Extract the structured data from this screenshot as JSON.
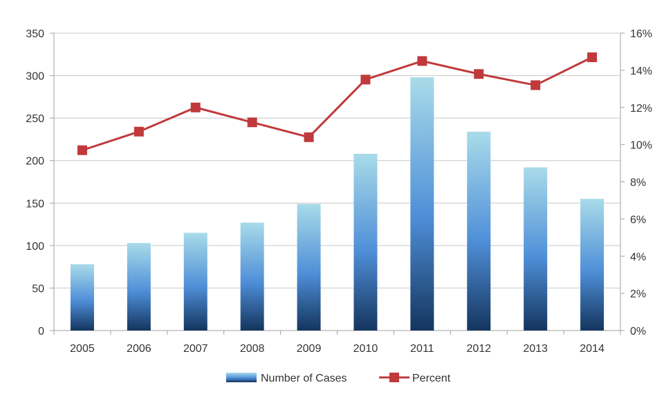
{
  "chart_data": {
    "type": "bar",
    "categories": [
      "2005",
      "2006",
      "2007",
      "2008",
      "2009",
      "2010",
      "2011",
      "2012",
      "2013",
      "2014"
    ],
    "series": [
      {
        "name": "Number of Cases",
        "type": "bar",
        "axis": "left",
        "values": [
          78,
          103,
          115,
          127,
          149,
          208,
          298,
          234,
          192,
          155
        ]
      },
      {
        "name": "Percent",
        "type": "line",
        "axis": "right",
        "values": [
          9.7,
          10.7,
          12.0,
          11.2,
          10.4,
          13.5,
          14.5,
          13.8,
          13.2,
          14.7
        ]
      }
    ],
    "y_left": {
      "range": [
        0,
        350
      ],
      "ticks": [
        "0",
        "50",
        "100",
        "150",
        "200",
        "250",
        "300",
        "350"
      ]
    },
    "y_right": {
      "range": [
        0,
        16
      ],
      "ticks": [
        "0%",
        "2%",
        "4%",
        "6%",
        "8%",
        "10%",
        "12%",
        "14%",
        "16%"
      ]
    },
    "grid": true,
    "legend": {
      "placement": "bottom"
    },
    "colors": {
      "bar_top": "#a9dbe9",
      "bar_mid": "#4f8fd8",
      "bar_bottom": "#14355e",
      "line": "#c0393b",
      "marker": "#c0393b",
      "grid": "#c8c8c8",
      "axis": "#a0a0a0"
    }
  }
}
